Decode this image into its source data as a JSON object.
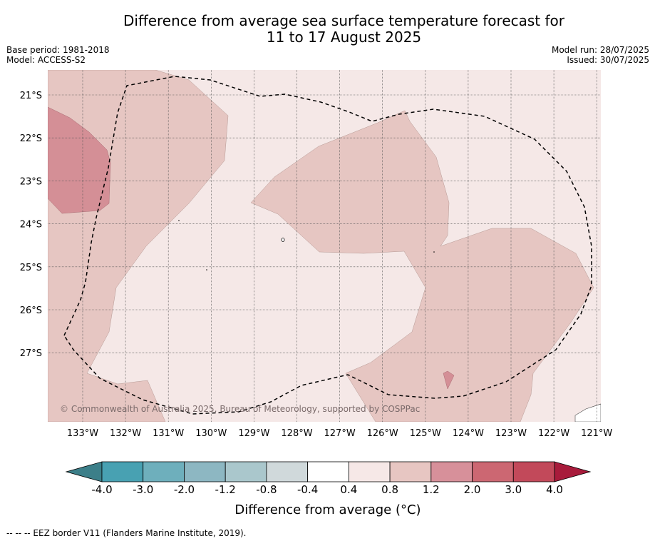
{
  "header": {
    "title_line1": "Difference from average sea surface temperature forecast for",
    "title_line2": "11 to 17 August 2025",
    "base_period": "Base period: 1981-2018",
    "model": "Model: ACCESS-S2",
    "model_run": "Model run: 28/07/2025",
    "issued": "Issued: 30/07/2025"
  },
  "map": {
    "lat_labels": [
      "21°S",
      "22°S",
      "23°S",
      "24°S",
      "25°S",
      "26°S",
      "27°S"
    ],
    "lon_labels": [
      "133°W",
      "132°W",
      "131°W",
      "130°W",
      "129°W",
      "128°W",
      "127°W",
      "126°W",
      "125°W",
      "124°W",
      "123°W",
      "122°W",
      "121°W"
    ],
    "copyright": "© Commonwealth of Australia 2025, Bureau of Meteorology, supported by COSPPac",
    "colors": {
      "class_0_4_0_8": "#f5e8e7",
      "class_0_8_1_2": "#e6c6c2",
      "class_1_2_2_0": "#d48f96",
      "land": "#ffffff",
      "grid": "#555555",
      "eez_border": "#000000"
    }
  },
  "colorbar": {
    "tick_labels": [
      "-4.0",
      "-3.0",
      "-2.0",
      "-1.2",
      "-0.8",
      "-0.4",
      "0.4",
      "0.8",
      "1.2",
      "2.0",
      "3.0",
      "4.0"
    ],
    "colors": [
      "#48a1b2",
      "#6eafbc",
      "#8db7c2",
      "#aac7cc",
      "#d0d9db",
      "#ffffff",
      "#f6e8e7",
      "#e7c6c2",
      "#d7909a",
      "#cc6772",
      "#c2495a"
    ],
    "low_extend_color": "#3c7f89",
    "high_extend_color": "#a81b3b",
    "title": "Difference from average (°C)"
  },
  "footer": {
    "eez_note": "--  --  -- EEZ border V11 (Flanders Marine Institute, 2019)."
  }
}
